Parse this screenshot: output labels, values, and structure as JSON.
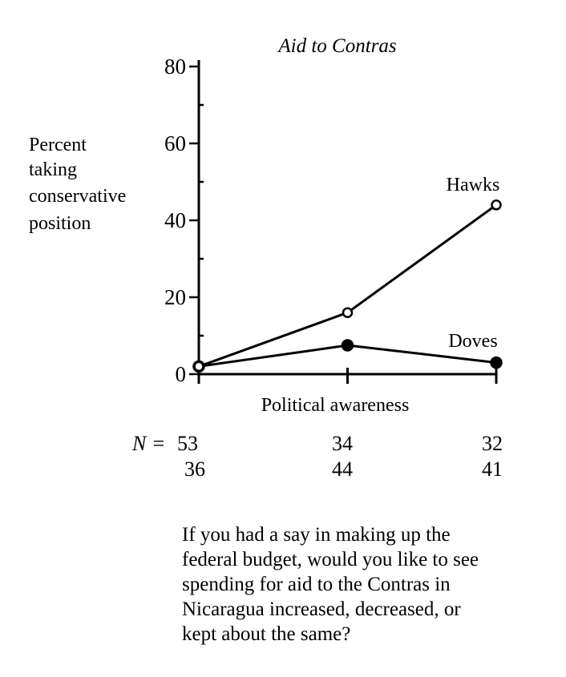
{
  "chart_data": {
    "type": "line",
    "title": "Aid to Contras",
    "ylabel_lines": [
      "Percent",
      "taking",
      "conservative",
      "position"
    ],
    "xlabel": "Political awareness",
    "ylim": [
      0,
      80
    ],
    "yticks": [
      "0",
      "20",
      "40",
      "60",
      "80"
    ],
    "x": [
      0,
      1,
      2
    ],
    "series": [
      {
        "name": "Hawks",
        "values": [
          2,
          16,
          44
        ],
        "marker": "open-circle"
      },
      {
        "name": "Doves",
        "values": [
          2,
          7.5,
          3
        ],
        "marker": "filled-circle"
      }
    ],
    "grid": false,
    "legend": "inline labels at line ends"
  },
  "n_table": {
    "prefix": "N =",
    "hawks_row": [
      "53",
      "34",
      "32"
    ],
    "doves_row": [
      "36",
      "44",
      "41"
    ]
  },
  "question_lines": [
    "If you had a say in making up the",
    "federal budget, would you like to see",
    "spending for aid to the Contras in",
    "Nicaragua increased, decreased, or",
    "kept about the same?"
  ]
}
